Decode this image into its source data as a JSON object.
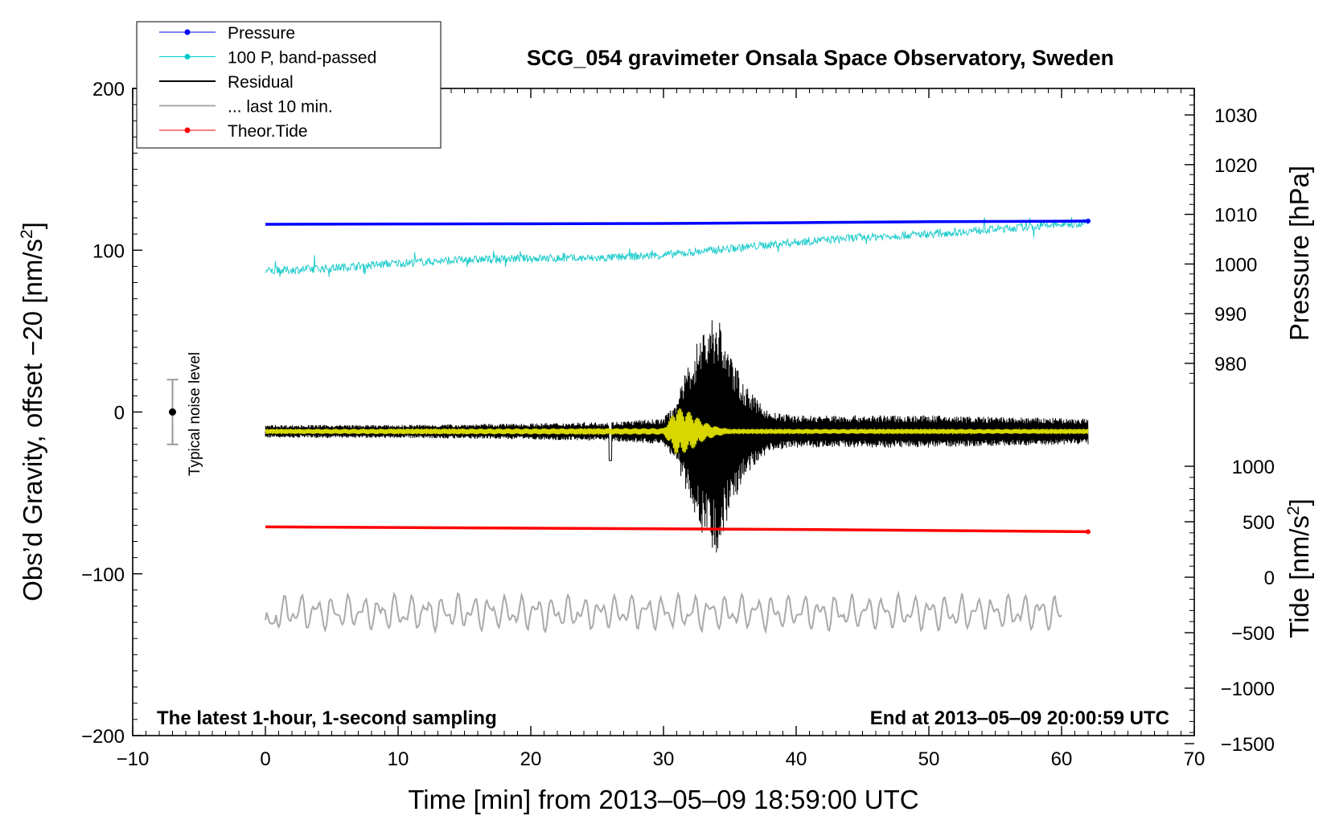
{
  "chart_data": {
    "type": "line",
    "title": "SCG_054 gravimeter Onsala Space Observatory, Sweden",
    "xlabel": "Time [min] from 2013‒05‒09 18:59:00 UTC",
    "ylabel": "Obs’d Gravity, offset −20 [nm/s",
    "ylabel_sup": "2",
    "ylabel_end": "]",
    "y2label_pressure": "Pressure [hPa]",
    "y2label_tide": "Tide [nm/s",
    "y2label_tide_sup": "2",
    "y2label_tide_end": "]",
    "xlim": [
      -10,
      70
    ],
    "ylim": [
      -200,
      200
    ],
    "x_ticks": [
      -10,
      0,
      10,
      20,
      30,
      40,
      50,
      60,
      70
    ],
    "x_tick_labels": [
      "−10",
      "0",
      "10",
      "20",
      "30",
      "40",
      "50",
      "60",
      "70"
    ],
    "y_ticks": [
      -200,
      -100,
      0,
      100,
      200
    ],
    "y_tick_labels": [
      "−200",
      "−100",
      "0",
      "100",
      "200"
    ],
    "pressure_ticks": [
      980,
      990,
      1000,
      1010,
      1020,
      1030
    ],
    "pressure_tick_labels": [
      "980",
      "990",
      "1000",
      "1010",
      "1020",
      "1030"
    ],
    "tide_ticks": [
      -1500,
      -1000,
      -500,
      0,
      500,
      1000
    ],
    "tide_tick_labels": [
      "−1500",
      "−1000",
      "−500",
      "0",
      "500",
      "1000"
    ],
    "note_left": "The latest 1‑hour, 1‑second sampling",
    "note_right": "End at 2013‒05‒09 20:00:59 UTC",
    "noise_label": "Typical noise level",
    "noise_bar": {
      "x": -7,
      "center": 0,
      "half_range": 20
    },
    "legend": [
      {
        "label": "Pressure",
        "color": "#0000ff",
        "marker": true
      },
      {
        "label": "100 P, band‑passed",
        "color": "#00cccc",
        "marker": true
      },
      {
        "label": "Residual",
        "color": "#000000",
        "marker": false
      },
      {
        "label": "... last 10 min.",
        "color": "#aaaaaa",
        "marker": false
      },
      {
        "label": "Theor.Tide",
        "color": "#ff0000",
        "marker": true
      }
    ],
    "series": [
      {
        "name": "Pressure",
        "color": "#0000ff",
        "x": [
          0,
          10,
          20,
          30,
          40,
          50,
          62
        ],
        "y": [
          116,
          116.2,
          116.3,
          116.5,
          117,
          117.6,
          118
        ]
      },
      {
        "name": "100 P, band‑passed",
        "color": "#22cccc",
        "x": [
          0,
          5,
          10,
          15,
          20,
          25,
          30,
          35,
          40,
          45,
          50,
          55,
          62
        ],
        "y": [
          87,
          89,
          92,
          94,
          95,
          95,
          97,
          101,
          105,
          108,
          110,
          113,
          117
        ]
      },
      {
        "name": "Residual",
        "color": "#000000",
        "x": [
          0,
          10,
          20,
          26,
          30,
          31,
          32,
          33,
          34,
          35,
          36,
          37,
          38,
          40,
          45,
          50,
          55,
          62
        ],
        "amplitude": [
          4,
          4,
          5,
          6,
          8,
          20,
          45,
          65,
          75,
          50,
          30,
          20,
          12,
          10,
          10,
          10,
          9,
          8
        ],
        "baseline": -12
      },
      {
        "name": "Residual (filtered)",
        "color": "#d8d800",
        "x": [
          0,
          30,
          30.5,
          31,
          32,
          33,
          34,
          35,
          62
        ],
        "amplitude": [
          1.5,
          2,
          8,
          15,
          12,
          6,
          3,
          1.5,
          1.5
        ],
        "baseline": -12
      },
      {
        "name": "... last 10 min.",
        "color": "#aaaaaa",
        "x": [
          0,
          60
        ],
        "baseline": -124,
        "amplitude": 8
      },
      {
        "name": "Theor.Tide",
        "color": "#ff0000",
        "x": [
          0,
          20,
          40,
          62
        ],
        "y": [
          -71,
          -71.8,
          -72.6,
          -74
        ]
      }
    ]
  }
}
